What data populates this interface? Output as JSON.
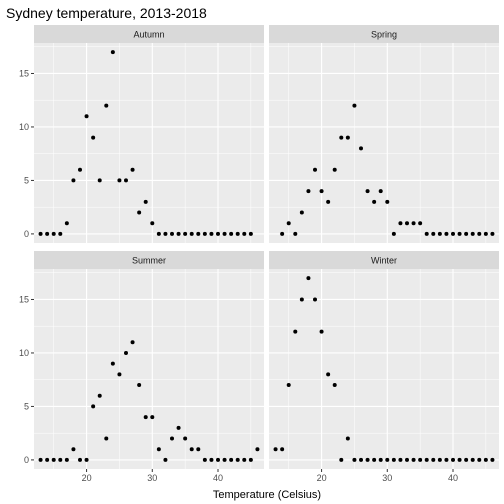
{
  "chart_data": {
    "type": "scatter",
    "title": "Sydney temperature, 2013-2018",
    "xlabel": "Temperature (Celsius)",
    "ylabel": "",
    "xlim": [
      12,
      47
    ],
    "ylim": [
      0,
      17
    ],
    "x_ticks": [
      20,
      30,
      40
    ],
    "y_ticks": [
      0,
      5,
      10,
      15
    ],
    "grid": true,
    "facets": [
      {
        "name": "Autumn",
        "points": [
          [
            13,
            0
          ],
          [
            14,
            0
          ],
          [
            15,
            0
          ],
          [
            16,
            0
          ],
          [
            17,
            1
          ],
          [
            18,
            5
          ],
          [
            19,
            6
          ],
          [
            20,
            11
          ],
          [
            21,
            9
          ],
          [
            22,
            5
          ],
          [
            23,
            12
          ],
          [
            24,
            17
          ],
          [
            25,
            5
          ],
          [
            26,
            5
          ],
          [
            27,
            6
          ],
          [
            28,
            2
          ],
          [
            29,
            3
          ],
          [
            30,
            1
          ],
          [
            31,
            0
          ],
          [
            32,
            0
          ],
          [
            33,
            0
          ],
          [
            34,
            0
          ],
          [
            35,
            0
          ],
          [
            36,
            0
          ],
          [
            37,
            0
          ],
          [
            38,
            0
          ],
          [
            39,
            0
          ],
          [
            40,
            0
          ],
          [
            41,
            0
          ],
          [
            42,
            0
          ],
          [
            43,
            0
          ],
          [
            44,
            0
          ],
          [
            45,
            0
          ]
        ]
      },
      {
        "name": "Spring",
        "points": [
          [
            14,
            0
          ],
          [
            15,
            1
          ],
          [
            16,
            0
          ],
          [
            17,
            2
          ],
          [
            18,
            4
          ],
          [
            19,
            6
          ],
          [
            20,
            4
          ],
          [
            21,
            3
          ],
          [
            22,
            6
          ],
          [
            23,
            9
          ],
          [
            24,
            9
          ],
          [
            25,
            12
          ],
          [
            26,
            8
          ],
          [
            27,
            4
          ],
          [
            28,
            3
          ],
          [
            29,
            4
          ],
          [
            30,
            3
          ],
          [
            31,
            0
          ],
          [
            32,
            1
          ],
          [
            33,
            1
          ],
          [
            34,
            1
          ],
          [
            35,
            1
          ],
          [
            36,
            0
          ],
          [
            37,
            0
          ],
          [
            38,
            0
          ],
          [
            39,
            0
          ],
          [
            40,
            0
          ],
          [
            41,
            0
          ],
          [
            42,
            0
          ],
          [
            43,
            0
          ],
          [
            44,
            0
          ],
          [
            45,
            0
          ],
          [
            46,
            0
          ]
        ]
      },
      {
        "name": "Summer",
        "points": [
          [
            13,
            0
          ],
          [
            14,
            0
          ],
          [
            15,
            0
          ],
          [
            16,
            0
          ],
          [
            17,
            0
          ],
          [
            18,
            1
          ],
          [
            19,
            0
          ],
          [
            20,
            0
          ],
          [
            21,
            5
          ],
          [
            22,
            6
          ],
          [
            23,
            2
          ],
          [
            24,
            9
          ],
          [
            25,
            8
          ],
          [
            26,
            10
          ],
          [
            27,
            11
          ],
          [
            28,
            7
          ],
          [
            29,
            4
          ],
          [
            30,
            4
          ],
          [
            31,
            1
          ],
          [
            32,
            0
          ],
          [
            33,
            2
          ],
          [
            34,
            3
          ],
          [
            35,
            2
          ],
          [
            36,
            1
          ],
          [
            37,
            1
          ],
          [
            38,
            0
          ],
          [
            39,
            0
          ],
          [
            40,
            0
          ],
          [
            41,
            0
          ],
          [
            42,
            0
          ],
          [
            43,
            0
          ],
          [
            44,
            0
          ],
          [
            45,
            0
          ],
          [
            46,
            1
          ]
        ]
      },
      {
        "name": "Winter",
        "points": [
          [
            13,
            1
          ],
          [
            14,
            1
          ],
          [
            15,
            7
          ],
          [
            16,
            12
          ],
          [
            17,
            15
          ],
          [
            18,
            17
          ],
          [
            19,
            15
          ],
          [
            20,
            12
          ],
          [
            21,
            8
          ],
          [
            22,
            7
          ],
          [
            23,
            0
          ],
          [
            24,
            2
          ],
          [
            25,
            0
          ],
          [
            26,
            0
          ],
          [
            27,
            0
          ],
          [
            28,
            0
          ],
          [
            29,
            0
          ],
          [
            30,
            0
          ],
          [
            31,
            0
          ],
          [
            32,
            0
          ],
          [
            33,
            0
          ],
          [
            34,
            0
          ],
          [
            35,
            0
          ],
          [
            36,
            0
          ],
          [
            37,
            0
          ],
          [
            38,
            0
          ],
          [
            39,
            0
          ],
          [
            40,
            0
          ],
          [
            41,
            0
          ],
          [
            42,
            0
          ],
          [
            43,
            0
          ],
          [
            44,
            0
          ],
          [
            45,
            0
          ],
          [
            46,
            0
          ]
        ]
      }
    ],
    "colors": {
      "panel_background": "#ebebeb",
      "strip_background": "#d9d9d9",
      "grid": "#ffffff",
      "point": "#000000"
    }
  }
}
